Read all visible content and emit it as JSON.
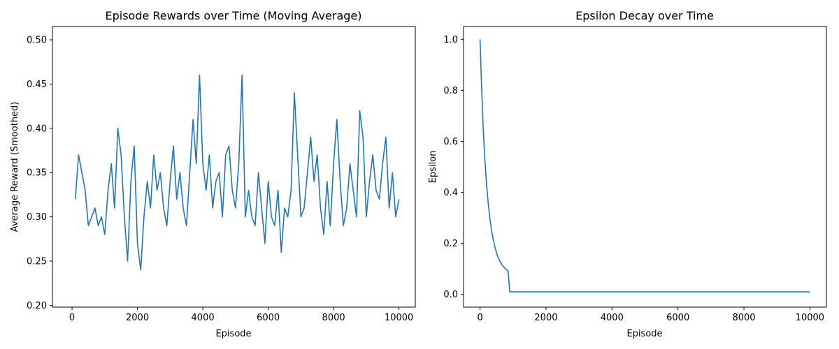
{
  "chart_data": [
    {
      "type": "line",
      "title": "Episode Rewards over Time (Moving Average)",
      "xlabel": "Episode",
      "ylabel": "Average Reward (Smoothed)",
      "xlim": [
        -600,
        10500
      ],
      "ylim": [
        0.198,
        0.515
      ],
      "xticks": [
        0,
        2000,
        4000,
        6000,
        8000,
        10000
      ],
      "xtick_labels": [
        "0",
        "2000",
        "4000",
        "6000",
        "8000",
        "10000"
      ],
      "yticks": [
        0.2,
        0.25,
        0.3,
        0.35,
        0.4,
        0.45,
        0.5
      ],
      "ytick_labels": [
        "0.20",
        "0.25",
        "0.30",
        "0.35",
        "0.40",
        "0.45",
        "0.50"
      ],
      "grid": false,
      "series": [
        {
          "color": "#1f77b4",
          "x": [
            100,
            200,
            300,
            400,
            500,
            600,
            700,
            800,
            900,
            1000,
            1100,
            1200,
            1300,
            1400,
            1500,
            1600,
            1700,
            1800,
            1900,
            2000,
            2100,
            2200,
            2300,
            2400,
            2500,
            2600,
            2700,
            2800,
            2900,
            3000,
            3100,
            3200,
            3300,
            3400,
            3500,
            3600,
            3700,
            3800,
            3900,
            4000,
            4100,
            4200,
            4300,
            4400,
            4500,
            4600,
            4700,
            4800,
            4900,
            5000,
            5100,
            5200,
            5300,
            5400,
            5500,
            5600,
            5700,
            5800,
            5900,
            6000,
            6100,
            6200,
            6300,
            6400,
            6500,
            6600,
            6700,
            6800,
            6900,
            7000,
            7100,
            7200,
            7300,
            7400,
            7500,
            7600,
            7700,
            7800,
            7900,
            8000,
            8100,
            8200,
            8300,
            8400,
            8500,
            8600,
            8700,
            8800,
            8900,
            9000,
            9100,
            9200,
            9300,
            9400,
            9500,
            9600,
            9700,
            9800,
            9900,
            10000
          ],
          "y": [
            0.32,
            0.37,
            0.35,
            0.33,
            0.29,
            0.3,
            0.31,
            0.29,
            0.3,
            0.28,
            0.33,
            0.36,
            0.31,
            0.4,
            0.37,
            0.3,
            0.25,
            0.34,
            0.38,
            0.27,
            0.24,
            0.3,
            0.34,
            0.31,
            0.37,
            0.33,
            0.35,
            0.31,
            0.29,
            0.34,
            0.38,
            0.32,
            0.35,
            0.31,
            0.29,
            0.35,
            0.41,
            0.36,
            0.46,
            0.36,
            0.33,
            0.37,
            0.31,
            0.34,
            0.35,
            0.3,
            0.37,
            0.38,
            0.33,
            0.31,
            0.36,
            0.46,
            0.3,
            0.33,
            0.3,
            0.29,
            0.35,
            0.31,
            0.27,
            0.34,
            0.3,
            0.29,
            0.33,
            0.26,
            0.31,
            0.3,
            0.33,
            0.44,
            0.37,
            0.3,
            0.31,
            0.35,
            0.39,
            0.34,
            0.37,
            0.31,
            0.28,
            0.34,
            0.29,
            0.36,
            0.41,
            0.34,
            0.29,
            0.31,
            0.36,
            0.33,
            0.3,
            0.42,
            0.39,
            0.3,
            0.34,
            0.37,
            0.33,
            0.32,
            0.36,
            0.39,
            0.31,
            0.35,
            0.3,
            0.32
          ]
        }
      ]
    },
    {
      "type": "line",
      "title": "Epsilon Decay over Time",
      "xlabel": "Episode",
      "ylabel": "Epsilon",
      "xlim": [
        -500,
        10500
      ],
      "ylim": [
        -0.05,
        1.05
      ],
      "xticks": [
        0,
        2000,
        4000,
        6000,
        8000,
        10000
      ],
      "xtick_labels": [
        "0",
        "2000",
        "4000",
        "6000",
        "8000",
        "10000"
      ],
      "yticks": [
        0.0,
        0.2,
        0.4,
        0.6,
        0.8,
        1.0
      ],
      "ytick_labels": [
        "0.0",
        "0.2",
        "0.4",
        "0.6",
        "0.8",
        "1.0"
      ],
      "grid": false,
      "series": [
        {
          "color": "#1f77b4",
          "x": [
            0,
            25,
            50,
            75,
            100,
            125,
            150,
            200,
            250,
            300,
            350,
            400,
            450,
            500,
            550,
            600,
            650,
            700,
            750,
            800,
            850,
            900,
            950,
            1000,
            2000,
            3000,
            4000,
            5000,
            6000,
            7000,
            8000,
            9000,
            10000
          ],
          "y": [
            1.0,
            0.895,
            0.8,
            0.717,
            0.643,
            0.578,
            0.521,
            0.427,
            0.354,
            0.296,
            0.25,
            0.215,
            0.186,
            0.163,
            0.145,
            0.131,
            0.119,
            0.11,
            0.103,
            0.097,
            0.092,
            0.01,
            0.01,
            0.01,
            0.01,
            0.01,
            0.01,
            0.01,
            0.01,
            0.01,
            0.01,
            0.01,
            0.01
          ]
        }
      ]
    }
  ]
}
